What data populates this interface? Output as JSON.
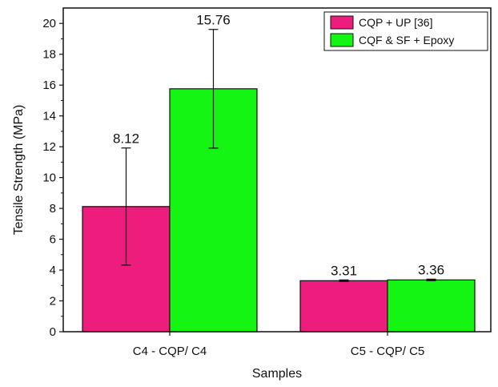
{
  "chart_data": {
    "type": "bar",
    "title": "",
    "xlabel": "Samples",
    "ylabel": "Tensile Strength (MPa)",
    "ylim": [
      0,
      21
    ],
    "yticks": [
      0,
      2,
      4,
      6,
      8,
      10,
      12,
      14,
      16,
      18,
      20
    ],
    "categories": [
      "C4 - CQP/ C4",
      "C5 - CQP/ C5"
    ],
    "series": [
      {
        "name": "CQP + UP [36]",
        "color": "#ee1c7c",
        "values": [
          8.12,
          3.31
        ],
        "errors": [
          3.8,
          0.05
        ],
        "value_labels": [
          "8.12",
          "3.31"
        ]
      },
      {
        "name": "CQF & SF + Epoxy",
        "color": "#14f514",
        "values": [
          15.76,
          3.36
        ],
        "errors": [
          3.85,
          0.05
        ],
        "value_labels": [
          "15.76",
          "3.36"
        ]
      }
    ],
    "legend_position": "top-right",
    "grid": false
  }
}
